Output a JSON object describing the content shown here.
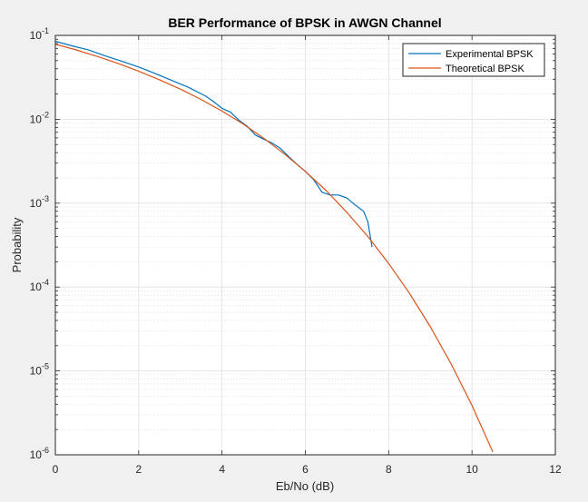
{
  "chart_data": {
    "type": "line",
    "title": "BER Performance of BPSK in AWGN Channel",
    "xlabel": "Eb/No (dB)",
    "ylabel": "Probability",
    "xlim": [
      0,
      12
    ],
    "ylim": [
      1e-06,
      0.1
    ],
    "yscale": "log",
    "grid": true,
    "minor_grid": true,
    "legend_position": "top-right",
    "x_ticks": [
      0,
      2,
      4,
      6,
      8,
      10,
      12
    ],
    "x_tick_labels": [
      "0",
      "2",
      "4",
      "6",
      "8",
      "10",
      "12"
    ],
    "y_ticks": [
      {
        "value": 1e-06,
        "base": "10",
        "exp": "-6"
      },
      {
        "value": 1e-05,
        "base": "10",
        "exp": "-5"
      },
      {
        "value": 0.0001,
        "base": "10",
        "exp": "-4"
      },
      {
        "value": 0.001,
        "base": "10",
        "exp": "-3"
      },
      {
        "value": 0.01,
        "base": "10",
        "exp": "-2"
      },
      {
        "value": 0.1,
        "base": "10",
        "exp": "-1"
      }
    ],
    "series": [
      {
        "name": "Experimental BPSK",
        "color": "#0072BD",
        "x": [
          0,
          0.4,
          0.8,
          1.2,
          1.6,
          2.0,
          2.4,
          2.8,
          3.2,
          3.6,
          3.8,
          4.0,
          4.2,
          4.4,
          4.6,
          4.8,
          5.0,
          5.2,
          5.4,
          5.6,
          5.8,
          6.0,
          6.2,
          6.4,
          6.6,
          6.8,
          7.0,
          7.2,
          7.4,
          7.5,
          7.6
        ],
        "values": [
          0.085,
          0.075,
          0.067,
          0.057,
          0.049,
          0.042,
          0.035,
          0.029,
          0.024,
          0.019,
          0.0162,
          0.0135,
          0.0122,
          0.0098,
          0.0083,
          0.0065,
          0.0058,
          0.0052,
          0.0045,
          0.0036,
          0.0029,
          0.0024,
          0.0019,
          0.00135,
          0.00125,
          0.00125,
          0.00115,
          0.00095,
          0.0008,
          0.0006,
          0.0003
        ]
      },
      {
        "name": "Theoretical BPSK",
        "color": "#D95319",
        "x": [
          0,
          0.5,
          1,
          1.5,
          2,
          2.5,
          3,
          3.5,
          4,
          4.5,
          5,
          5.5,
          6,
          6.5,
          7,
          7.5,
          8,
          8.5,
          9,
          9.5,
          10,
          10.5
        ],
        "values": [
          0.0786,
          0.0671,
          0.0563,
          0.0464,
          0.0375,
          0.0296,
          0.0229,
          0.0172,
          0.0125,
          0.00882,
          0.00595,
          0.00385,
          0.00239,
          0.00141,
          0.000773,
          0.000401,
          0.000191,
          8.4e-05,
          3.36e-05,
          1.21e-05,
          3.87e-06,
          1.08e-06
        ]
      }
    ]
  }
}
